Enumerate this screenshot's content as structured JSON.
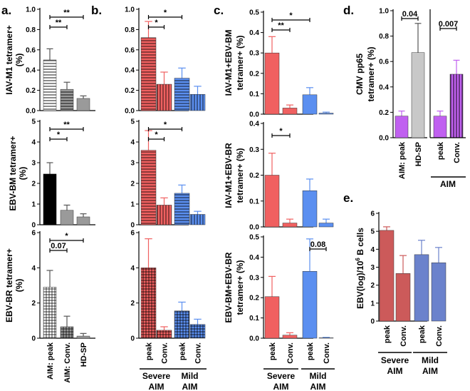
{
  "figure": {
    "panel_labels": [
      "a.",
      "b.",
      "c.",
      "d.",
      "e."
    ]
  },
  "colors": {
    "severe_red": "#f06060",
    "mild_blue": "#5b8ff0",
    "black": "#000000",
    "gray": "#9a9a9a",
    "light_gray": "#c8c8c8",
    "purple": "#c060f0",
    "e_red": "#cc5a5a",
    "e_blue": "#6b82cc"
  },
  "chart_data": [
    {
      "id": "a1",
      "panel": "a.",
      "type": "bar",
      "ylabel": [
        "IAV-M1 tetramer+",
        "(%)"
      ],
      "ylim": [
        0,
        1.0
      ],
      "yticks": [
        "0.0",
        "0.2",
        "0.4",
        "0.6",
        "0.8",
        "1.0"
      ],
      "categories": [
        "AIM: peak",
        "AIM: Conv.",
        "HD-SP"
      ],
      "values": [
        0.5,
        0.21,
        0.12
      ],
      "errors": [
        0.11,
        0.07,
        0.025
      ],
      "fills": [
        "hstripe-white",
        "hstripe-gray",
        "solid-gray"
      ],
      "annotations": [
        {
          "from": 0,
          "to": 2,
          "label": "**"
        },
        {
          "from": 0,
          "to": 1,
          "label": "**"
        }
      ]
    },
    {
      "id": "a2",
      "panel": "a.",
      "type": "bar",
      "ylabel": [
        "EBV-BM tetramer+",
        "(%)"
      ],
      "ylim": [
        0,
        5
      ],
      "yticks": [
        "0",
        "1",
        "2",
        "3",
        "4",
        "5"
      ],
      "categories": [
        "AIM: peak",
        "AIM: Conv.",
        "HD-SP"
      ],
      "values": [
        2.45,
        0.7,
        0.38
      ],
      "errors": [
        0.55,
        0.25,
        0.15
      ],
      "fills": [
        "solid-black",
        "solid-gray",
        "solid-gray"
      ],
      "annotations": [
        {
          "from": 0,
          "to": 2,
          "label": "**"
        },
        {
          "from": 0,
          "to": 1,
          "label": "*"
        }
      ]
    },
    {
      "id": "a3",
      "panel": "a.",
      "type": "bar",
      "ylabel": [
        "EBV-BR tetramer+",
        "(%)"
      ],
      "ylim": [
        0,
        6
      ],
      "yticks": [
        "0",
        "2",
        "4",
        "6"
      ],
      "categories": [
        "AIM: peak",
        "AIM: Conv.",
        "HD-SP"
      ],
      "values": [
        2.9,
        0.65,
        0.12
      ],
      "errors": [
        0.95,
        0.6,
        0.15
      ],
      "fills": [
        "grid-white",
        "grid-gray",
        "solid-gray"
      ],
      "annotations": [
        {
          "from": 0,
          "to": 2,
          "label": "*"
        },
        {
          "from": 0,
          "to": 1,
          "label": "0.07"
        }
      ]
    },
    {
      "id": "b1",
      "panel": "b.",
      "type": "bar",
      "ylim": [
        0,
        1.0
      ],
      "yticks": [
        "0.0",
        "0.2",
        "0.4",
        "0.6",
        "0.8",
        "1.0"
      ],
      "categories": [
        "peak",
        "Conv.",
        "peak",
        "Conv."
      ],
      "groups": [
        "Severe AIM",
        "Mild AIM"
      ],
      "values": [
        0.72,
        0.26,
        0.32,
        0.16
      ],
      "errors": [
        0.16,
        0.12,
        0.1,
        0.08
      ],
      "fills": [
        "hstripe-red",
        "vstripe-red",
        "hstripe-blue",
        "vstripe-blue"
      ],
      "annotations": [
        {
          "from": 0,
          "to": 2,
          "label": "*"
        },
        {
          "from": 0,
          "to": 1,
          "label": "*"
        }
      ]
    },
    {
      "id": "b2",
      "panel": "b.",
      "type": "bar",
      "ylim": [
        0,
        5
      ],
      "yticks": [
        "0",
        "1",
        "2",
        "3",
        "4",
        "5"
      ],
      "categories": [
        "peak",
        "Conv.",
        "peak",
        "Conv."
      ],
      "groups": [
        "Severe AIM",
        "Mild AIM"
      ],
      "values": [
        3.6,
        0.95,
        1.52,
        0.5
      ],
      "errors": [
        0.95,
        0.35,
        0.4,
        0.15
      ],
      "fills": [
        "hstripe-red",
        "vstripe-red",
        "hstripe-blue",
        "vstripe-blue"
      ],
      "annotations": [
        {
          "from": 0,
          "to": 2,
          "label": "*"
        },
        {
          "from": 0,
          "to": 1,
          "label": "*"
        }
      ]
    },
    {
      "id": "b3",
      "panel": "b.",
      "type": "bar",
      "ylim": [
        0,
        6
      ],
      "yticks": [
        "0",
        "2",
        "4",
        "6"
      ],
      "categories": [
        "peak",
        "Conv.",
        "peak",
        "Conv."
      ],
      "groups": [
        "Severe AIM",
        "Mild AIM"
      ],
      "values": [
        4.0,
        0.45,
        1.55,
        0.78
      ],
      "errors": [
        1.65,
        0.2,
        0.5,
        0.3
      ],
      "fills": [
        "grid-red",
        "grid-red",
        "grid-blue",
        "grid-blue"
      ],
      "annotations": []
    },
    {
      "id": "c1",
      "panel": "c.",
      "type": "bar",
      "ylabel": [
        "IAV-M1+EBV-BM",
        "tetramer+ (%)"
      ],
      "ylim": [
        0,
        0.5
      ],
      "yticks": [
        "0.0",
        "0.1",
        "0.2",
        "0.3",
        "0.4",
        "0.5"
      ],
      "categories": [
        "peak",
        "Conv.",
        "peak",
        "Conv."
      ],
      "groups": [
        "Severe AIM",
        "Mild AIM"
      ],
      "values": [
        0.3,
        0.03,
        0.095,
        0.005
      ],
      "errors": [
        0.08,
        0.015,
        0.035,
        0.005
      ],
      "fills": [
        "solid-red",
        "solid-red",
        "solid-blue",
        "solid-blue"
      ],
      "annotations": [
        {
          "from": 0,
          "to": 2,
          "label": "*"
        },
        {
          "from": 0,
          "to": 1,
          "label": "**"
        }
      ]
    },
    {
      "id": "c2",
      "panel": "c.",
      "type": "bar",
      "ylabel": [
        "IAV-M1+EBV-BR",
        "tetramer+ (%)"
      ],
      "ylim": [
        0,
        0.4
      ],
      "yticks": [
        "0.0",
        "0.1",
        "0.2",
        "0.3",
        "0.4"
      ],
      "categories": [
        "peak",
        "Conv.",
        "peak",
        "Conv."
      ],
      "groups": [
        "Severe AIM",
        "Mild AIM"
      ],
      "values": [
        0.2,
        0.015,
        0.14,
        0.015
      ],
      "errors": [
        0.085,
        0.015,
        0.045,
        0.015
      ],
      "fills": [
        "solid-red",
        "solid-red",
        "solid-blue",
        "solid-blue"
      ],
      "annotations": [
        {
          "from": 0,
          "to": 1,
          "label": "*"
        }
      ]
    },
    {
      "id": "c3",
      "panel": "c.",
      "type": "bar",
      "ylabel": [
        "EBV-BM+EBV-BR",
        "tetramer+ (%)"
      ],
      "ylim": [
        0,
        0.5
      ],
      "yticks": [
        "0.0",
        "0.1",
        "0.2",
        "0.3",
        "0.4",
        "0.5"
      ],
      "categories": [
        "peak",
        "Conv.",
        "peak",
        "Conv."
      ],
      "groups": [
        "Severe AIM",
        "Mild AIM"
      ],
      "values": [
        0.205,
        0.015,
        0.33,
        0.002
      ],
      "errors": [
        0.1,
        0.012,
        0.16,
        0.002
      ],
      "fills": [
        "solid-red",
        "solid-red",
        "solid-blue",
        "solid-blue"
      ],
      "annotations": [
        {
          "from": 2,
          "to": 3,
          "label": "0.08"
        }
      ]
    },
    {
      "id": "d",
      "panel": "d.",
      "type": "bar",
      "ylabel": [
        "CMV pp65",
        "tetramer+ (%)"
      ],
      "ylim": [
        0,
        1.0
      ],
      "yticks": [
        "0.0",
        "0.2",
        "0.4",
        "0.6",
        "0.8",
        "1.0"
      ],
      "categories": [
        "AIM: peak",
        "HD-SP",
        "peak",
        "Conv."
      ],
      "groups": [
        "AIM"
      ],
      "values": [
        0.17,
        0.67,
        0.17,
        0.5
      ],
      "errors": [
        0.04,
        0.23,
        0.04,
        0.11
      ],
      "fills": [
        "solid-purple",
        "solid-lightgray",
        "solid-purple",
        "vstripe-purple"
      ],
      "annotations": [
        {
          "from": 0,
          "to": 1,
          "label": "0.04"
        },
        {
          "from": 2,
          "to": 3,
          "label": "0.007"
        }
      ]
    },
    {
      "id": "e",
      "panel": "e.",
      "type": "bar",
      "ylabel": [
        "EBV(log)/10",
        "6",
        " B cells"
      ],
      "ylim": [
        0,
        6
      ],
      "yticks": [
        "0",
        "1",
        "2",
        "3",
        "4",
        "5",
        "6"
      ],
      "categories": [
        "peak",
        "Conv.",
        "peak",
        "Conv."
      ],
      "groups": [
        "Severe AIM",
        "Mild AIM"
      ],
      "values": [
        5.05,
        2.65,
        3.7,
        3.25
      ],
      "errors": [
        0.2,
        1.0,
        0.8,
        0.85
      ],
      "fills": [
        "solid-ered",
        "solid-ered",
        "solid-eblue",
        "solid-eblue"
      ],
      "annotations": []
    }
  ]
}
